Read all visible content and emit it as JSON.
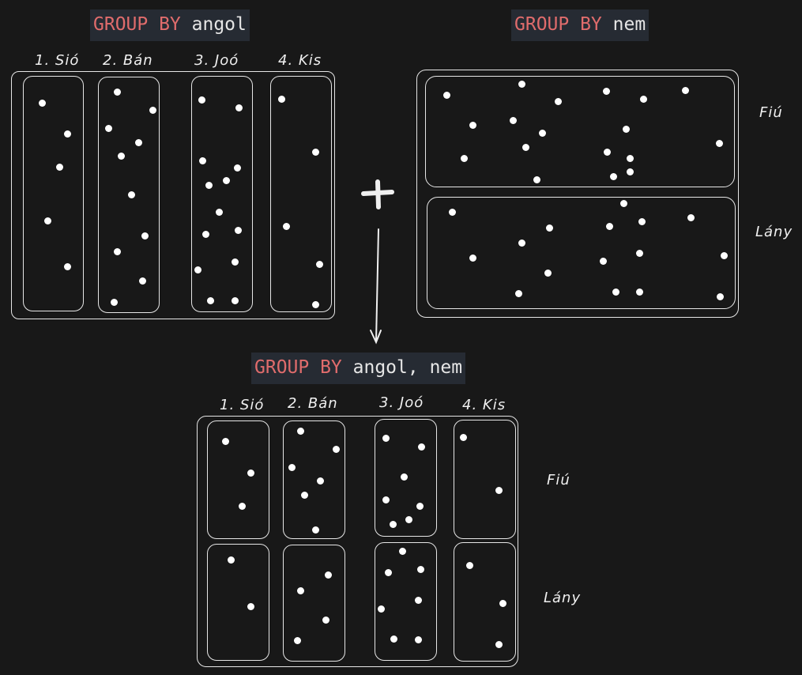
{
  "keyword": "GROUP BY",
  "top_left": {
    "field": "angol",
    "columns": [
      "1. Sió",
      "2. Bán",
      "3. Joó",
      "4. Kis"
    ]
  },
  "top_right": {
    "field": "nem",
    "rows": [
      "Fiú",
      "Lány"
    ]
  },
  "operator": "+",
  "bottom": {
    "fields": "angol, nem",
    "columns": [
      "1. Sió",
      "2. Bán",
      "3. Joó",
      "4. Kis"
    ],
    "rows": [
      "Fiú",
      "Lány"
    ]
  },
  "colors": {
    "background": "#181818",
    "code_background": "#262b33",
    "keyword": "#e06c6c",
    "stroke": "#e6e6e6",
    "dot": "#ffffff"
  }
}
